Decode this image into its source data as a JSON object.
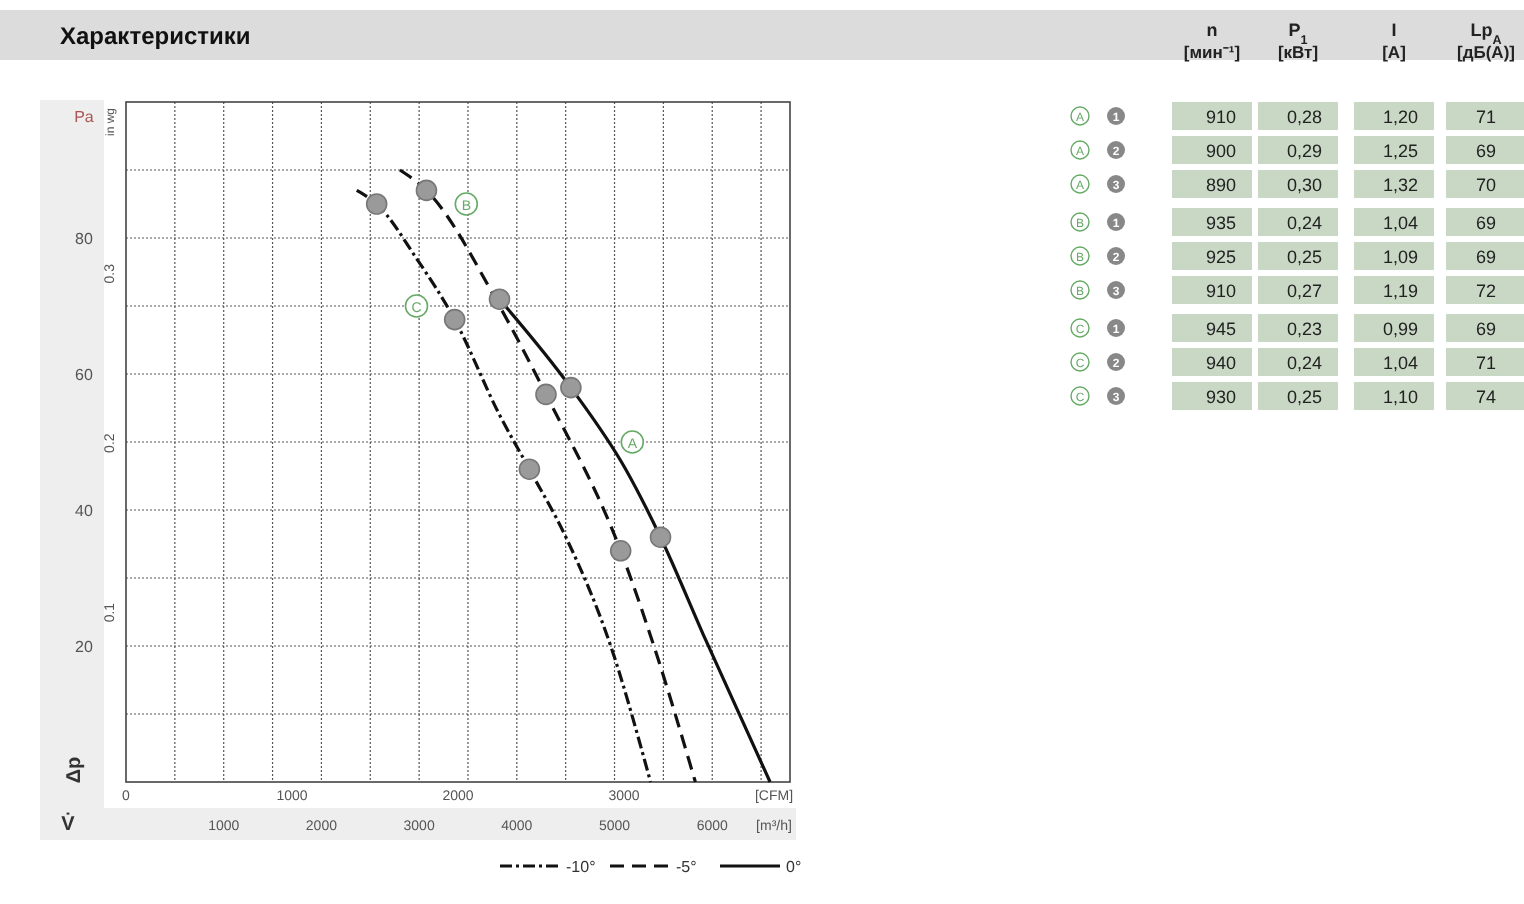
{
  "chart_data": [
    {
      "type": "line",
      "title": "Характеристики",
      "xlabel": "[CFM]",
      "x2label": "[m³/h]",
      "ylabel": "Pa",
      "y2label": "in wg",
      "xlim": [
        0,
        4000
      ],
      "xticks": [
        0,
        1000,
        2000,
        3000
      ],
      "x2lim": [
        0,
        6796
      ],
      "x2ticks": [
        {
          "value": 500,
          "label": null
        },
        1000,
        {
          "value": 1500,
          "label": null
        },
        2000,
        {
          "value": 2500,
          "label": null
        },
        3000,
        {
          "value": 3500,
          "label": null
        },
        4000,
        {
          "value": 4500,
          "label": null
        },
        5000,
        {
          "value": 5500,
          "label": null
        },
        6000,
        {
          "value": 6500,
          "label": null
        }
      ],
      "ylim": [
        0,
        100
      ],
      "yticks": [
        {
          "value": 10,
          "label": null
        },
        20,
        {
          "value": 30,
          "label": null
        },
        40,
        {
          "value": 50,
          "label": null
        },
        60,
        {
          "value": 70,
          "label": null
        },
        80,
        {
          "value": 90,
          "label": null
        }
      ],
      "y2lim": [
        0,
        0.4014
      ],
      "y2ticks": [
        0.1,
        0.2,
        0.3
      ],
      "grid": true,
      "legend": "bottom right",
      "marker": "none",
      "series": [
        {
          "name": "-10°",
          "color": "#111111",
          "line_style": "dotted",
          "x": [
            1390,
            1510,
            1750,
            1980,
            2250,
            2430,
            2650,
            2920,
            3160
          ],
          "values": [
            87,
            85,
            77,
            68,
            54,
            46,
            36,
            20,
            0
          ]
        },
        {
          "name": "-5°",
          "color": "#111111",
          "line_style": "dashed",
          "x": [
            1650,
            1810,
            2250,
            2530,
            2980,
            3180,
            3430
          ],
          "values": [
            90,
            87,
            70,
            57,
            34,
            20,
            0
          ]
        },
        {
          "name": "0°",
          "color": "#111111",
          "line_style": "solid",
          "x": [
            2250,
            2680,
            3010,
            3220,
            3490,
            3880
          ],
          "values": [
            71,
            58,
            46,
            36,
            21,
            0
          ]
        },
        {
          "type": "scatter",
          "marker": "circle",
          "color": "#9a9a9a",
          "x": [
            1510,
            1980,
            2430,
            1810,
            2530,
            2980,
            2250,
            2680,
            3220
          ],
          "values": [
            85,
            68,
            46,
            87,
            57,
            34,
            71,
            58,
            36
          ]
        }
      ],
      "annotations": [
        "Δp",
        "V̇",
        {
          "text": "A",
          "x": 3050,
          "y": 50
        },
        {
          "text": "B",
          "x": 2050,
          "y": 85
        },
        {
          "text": "C",
          "x": 1750,
          "y": 70
        }
      ]
    },
    {
      "type": "other",
      "categories": [
        "n [мин⁻¹]",
        "P$_{1}$ [кВт]",
        "I [A]",
        "Lp$_{A}$ [дБ(A)]"
      ],
      "y_categories": [
        "A",
        "A",
        "A",
        "B",
        "B",
        "B",
        "C",
        "C",
        "C"
      ],
      "y2_categories": [
        "1",
        "2",
        "3",
        "1",
        "2",
        "3",
        "1",
        "2",
        "3"
      ],
      "cells": [
        [
          "910",
          "0,28",
          "1,20",
          "71"
        ],
        [
          "900",
          "0,29",
          "1,25",
          "69"
        ],
        [
          "890",
          "0,30",
          "1,32",
          "70"
        ],
        [
          "935",
          "0,24",
          "1,04",
          "69"
        ],
        [
          "925",
          "0,25",
          "1,09",
          "69"
        ],
        [
          "910",
          "0,27",
          "1,19",
          "72"
        ],
        [
          "945",
          "0,23",
          "0,99",
          "69"
        ],
        [
          "940",
          "0,24",
          "1,04",
          "71"
        ],
        [
          "930",
          "0,25",
          "1,10",
          "74"
        ]
      ]
    }
  ]
}
